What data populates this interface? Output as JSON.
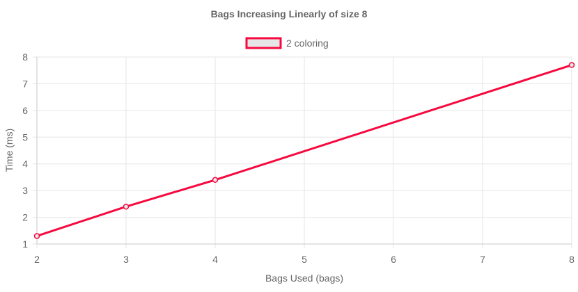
{
  "chart_data": {
    "type": "line",
    "title": "Bags Increasing Linearly of size 8",
    "xlabel": "Bags Used (bags)",
    "ylabel": "Time (ms)",
    "x": [
      2,
      3,
      4,
      8
    ],
    "series": [
      {
        "name": "2 coloring",
        "values": [
          1.3,
          2.4,
          3.4,
          7.7
        ],
        "color": "#f5093f"
      }
    ],
    "xlim": [
      2,
      8
    ],
    "ylim": [
      1,
      8
    ],
    "xticks": [
      2,
      3,
      4,
      5,
      6,
      7,
      8
    ],
    "yticks": [
      1,
      2,
      3,
      4,
      5,
      6,
      7,
      8
    ],
    "grid": true,
    "legend_position": "top-center"
  }
}
